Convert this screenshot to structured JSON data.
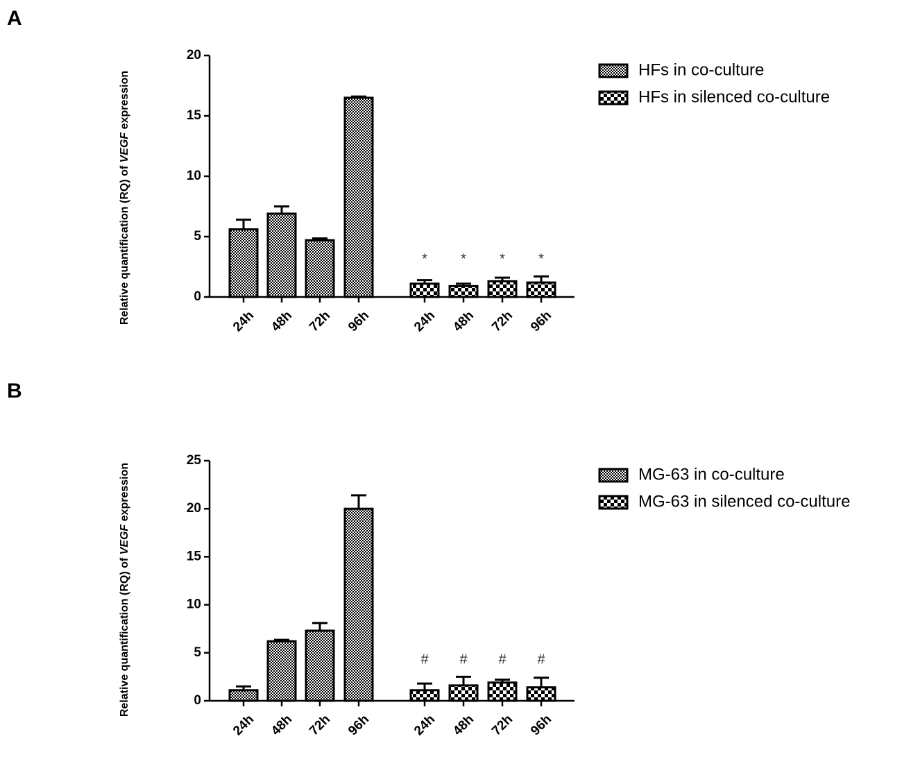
{
  "chart_data": [
    {
      "type": "bar",
      "panel": "A",
      "ylabel": [
        "Relative quantification  (RQ) of ",
        "VEGF",
        " expression"
      ],
      "categories": [
        "24h",
        "48h",
        "72h",
        "96h",
        "24h",
        "48h",
        "72h",
        "96h"
      ],
      "series": [
        {
          "name": "HFs in co-culture",
          "color": "#000000",
          "values": [
            5.6,
            6.9,
            4.7,
            16.5,
            null,
            null,
            null,
            null
          ],
          "errors": [
            0.8,
            0.6,
            0.15,
            0.1,
            null,
            null,
            null,
            null
          ]
        },
        {
          "name": "HFs in silenced co-culture",
          "color": "#000000",
          "values": [
            null,
            null,
            null,
            null,
            1.1,
            0.9,
            1.3,
            1.2
          ],
          "errors": [
            null,
            null,
            null,
            null,
            0.3,
            0.2,
            0.3,
            0.5
          ]
        }
      ],
      "annotations": [
        null,
        null,
        null,
        null,
        "*",
        "*",
        "*",
        "*"
      ],
      "ylim": [
        0,
        20
      ],
      "yticks": [
        0,
        5,
        10,
        15,
        20
      ],
      "legend": "upper right"
    },
    {
      "type": "bar",
      "panel": "B",
      "ylabel": [
        "Relative quantification  (RQ) of ",
        "VEGF",
        " expression"
      ],
      "categories": [
        "24h",
        "48h",
        "72h",
        "96h",
        "24h",
        "48h",
        "72h",
        "96h"
      ],
      "series": [
        {
          "name": "MG-63 in co-culture",
          "color": "#000000",
          "values": [
            1.1,
            6.2,
            7.3,
            20.0,
            null,
            null,
            null,
            null
          ],
          "errors": [
            0.4,
            0.15,
            0.8,
            1.4,
            null,
            null,
            null,
            null
          ]
        },
        {
          "name": "MG-63 in silenced co-culture",
          "color": "#000000",
          "values": [
            null,
            null,
            null,
            null,
            1.1,
            1.6,
            1.9,
            1.4
          ],
          "errors": [
            null,
            null,
            null,
            null,
            0.7,
            0.9,
            0.3,
            1.0
          ]
        }
      ],
      "annotations": [
        null,
        null,
        null,
        null,
        "#",
        "#",
        "#",
        "#"
      ],
      "ylim": [
        0,
        25
      ],
      "yticks": [
        0,
        5,
        10,
        15,
        20,
        25
      ],
      "legend": "upper right"
    }
  ]
}
